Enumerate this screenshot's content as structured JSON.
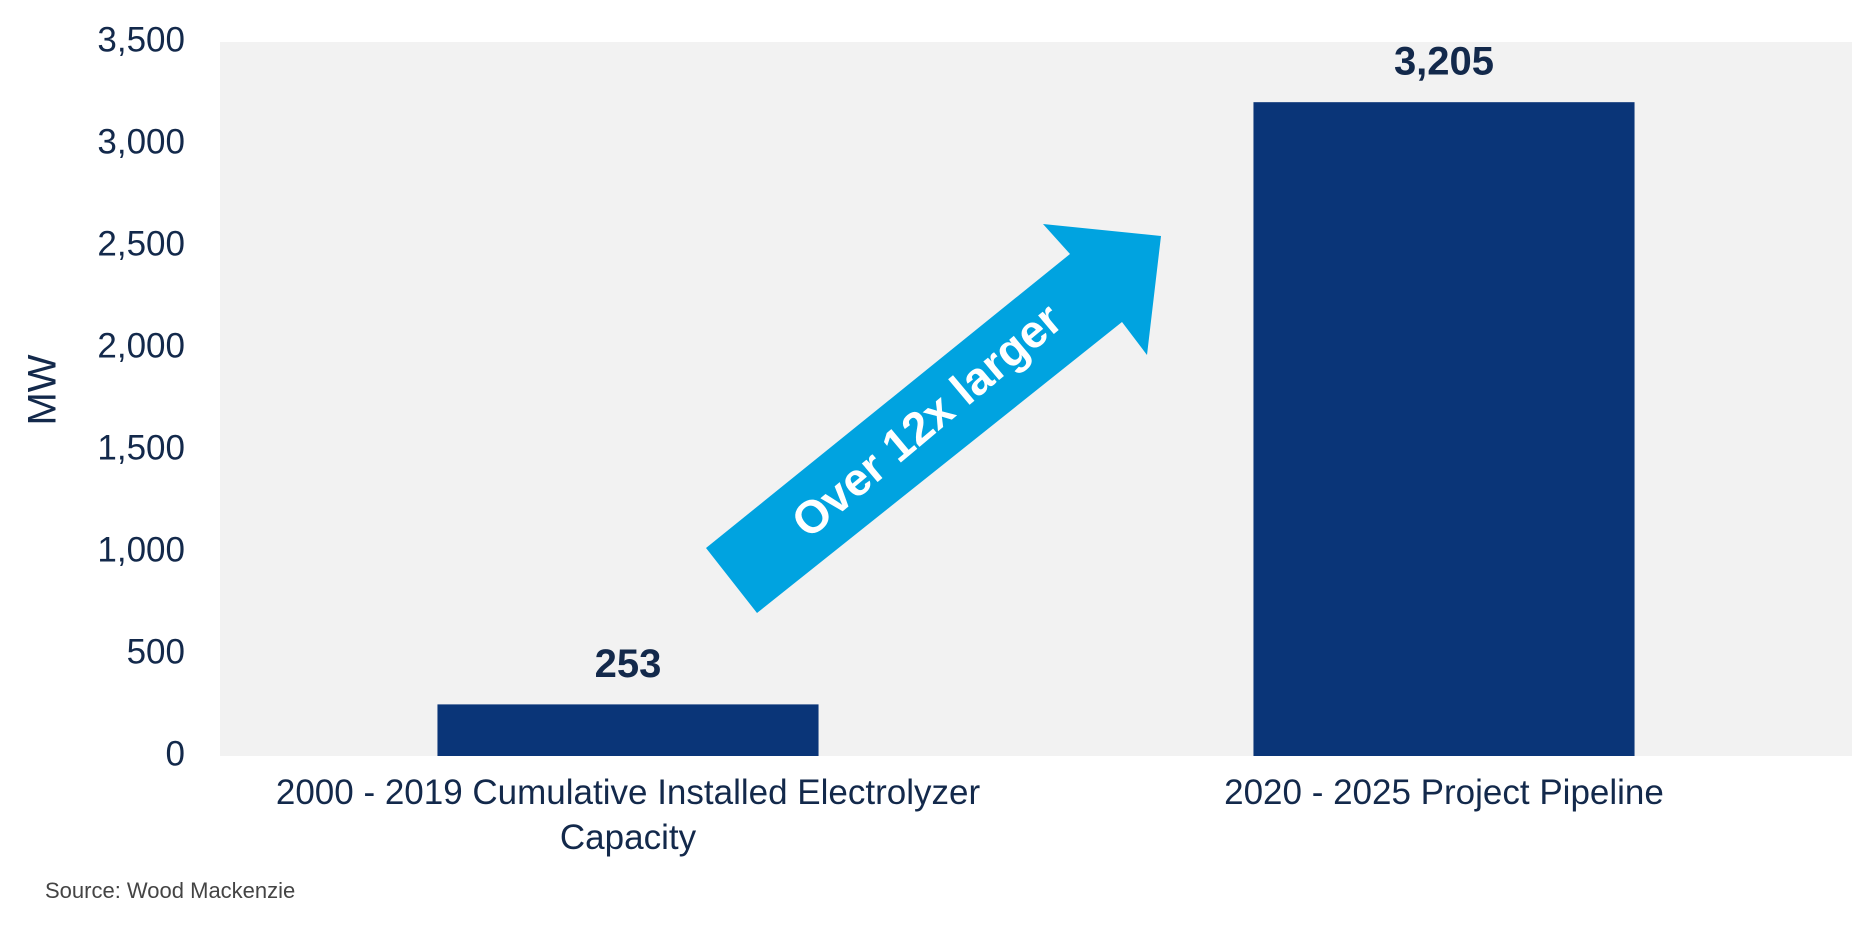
{
  "chart_data": {
    "type": "bar",
    "categories": [
      "2000 - 2019 Cumulative Installed Electrolyzer Capacity",
      "2020 - 2025 Project Pipeline"
    ],
    "values": [
      253,
      3205
    ],
    "value_labels": [
      "253",
      "3,205"
    ],
    "color": "#0a3578",
    "y_label": "MW",
    "ylim": [
      0,
      3500
    ],
    "yticks": [
      0,
      500,
      {
        "value": 1000,
        "label": "1,000"
      },
      {
        "value": 1500,
        "label": "1,500"
      },
      {
        "value": 2000,
        "label": "2,000"
      },
      {
        "value": 2500,
        "label": "2,500"
      },
      {
        "value": 3000,
        "label": "3,000"
      },
      {
        "value": 3500,
        "label": "3,500"
      }
    ],
    "annotation": "Over 12x larger",
    "source": "Source: Wood Mackenzie"
  }
}
